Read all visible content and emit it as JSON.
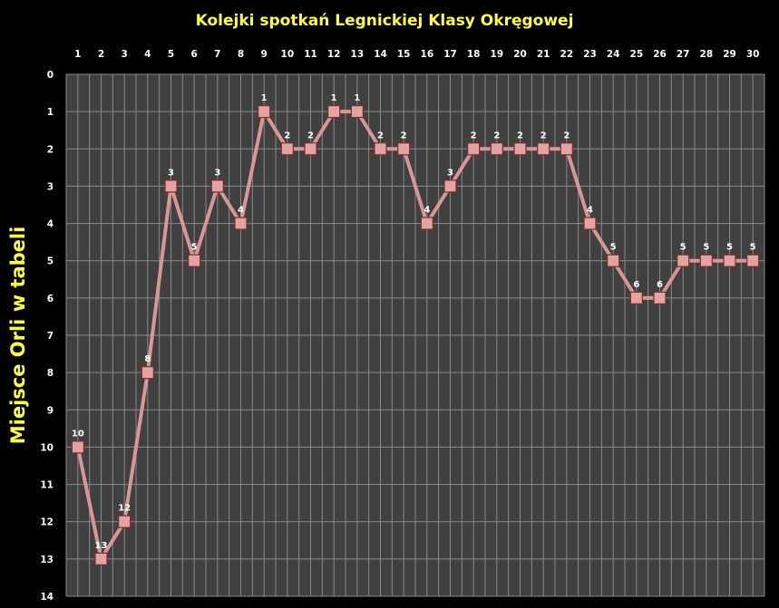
{
  "chart_data": {
    "type": "line",
    "title": "Kolejki spotkań Legnickiej Klasy Okręgowej",
    "xlabel": "",
    "ylabel": "Miejsce Orli w tabeli",
    "x": [
      1,
      2,
      3,
      4,
      5,
      6,
      7,
      8,
      9,
      10,
      11,
      12,
      13,
      14,
      15,
      16,
      17,
      18,
      19,
      20,
      21,
      22,
      23,
      24,
      25,
      26,
      27,
      28,
      29,
      30
    ],
    "ylim": [
      0,
      14
    ],
    "y_inverted": true,
    "x_axis_position": "top",
    "grid": true,
    "legend": "none",
    "series": [
      {
        "values": [
          10,
          13,
          12,
          8,
          3,
          5,
          3,
          4,
          1,
          2,
          2,
          1,
          1,
          2,
          2,
          4,
          3,
          2,
          2,
          2,
          2,
          2,
          4,
          5,
          6,
          6,
          5,
          5,
          5,
          5
        ]
      }
    ],
    "colors": {
      "background": "#000000",
      "plot_area": "#404040",
      "gridline": "#8a8a8a",
      "series_line": "#d99694",
      "title_text": "#ffff40",
      "tick_text": "#ffffff"
    }
  }
}
